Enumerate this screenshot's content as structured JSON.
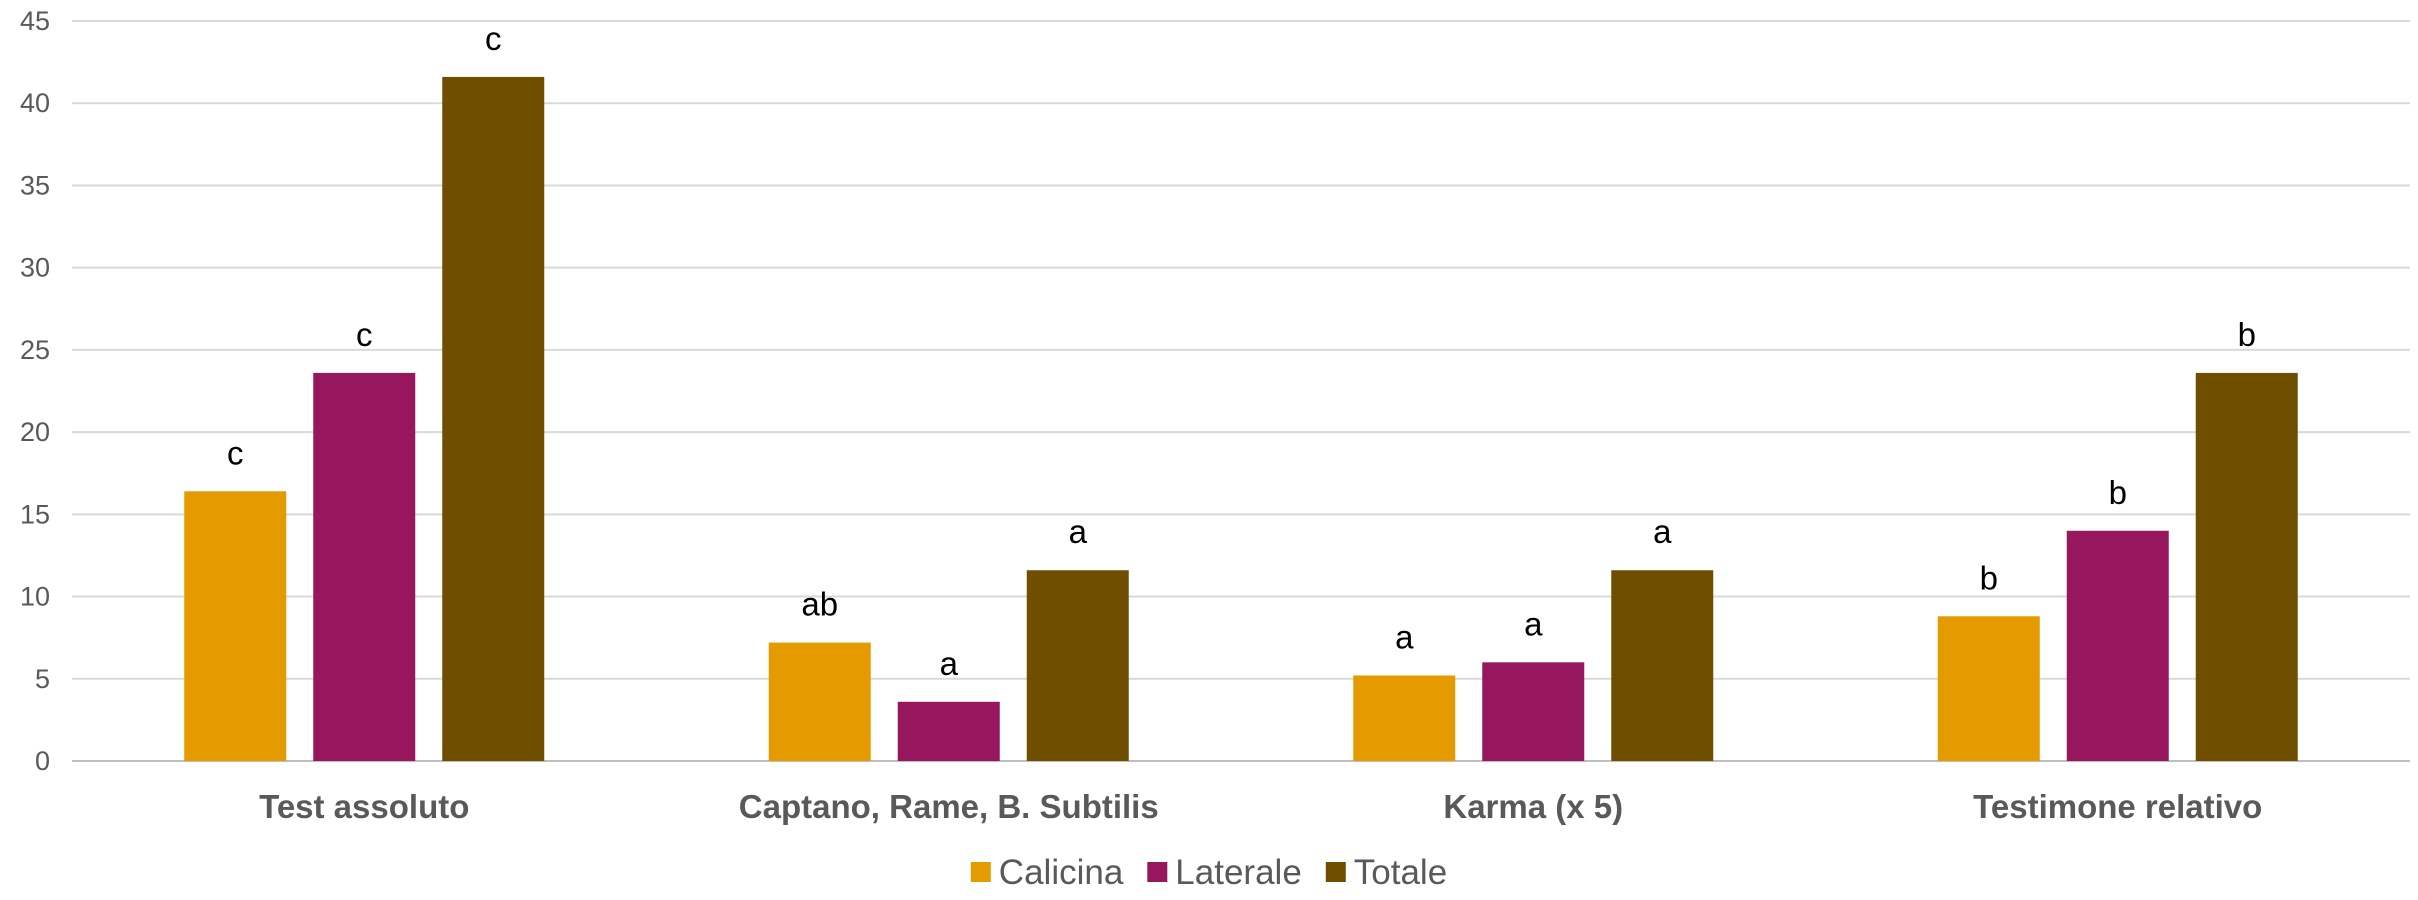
{
  "chart_data": {
    "type": "bar",
    "categories": [
      "Test assoluto",
      "Captano, Rame, B. Subtilis",
      "Karma (x 5)",
      "Testimone relativo"
    ],
    "series": [
      {
        "name": "Calicina",
        "color": "#E59A00",
        "values": [
          16.4,
          7.2,
          5.2,
          8.8
        ],
        "labels": [
          "c",
          "ab",
          "a",
          "b"
        ]
      },
      {
        "name": "Laterale",
        "color": "#96175E",
        "values": [
          23.6,
          3.6,
          6.0,
          14.0
        ],
        "labels": [
          "c",
          "a",
          "a",
          "b"
        ]
      },
      {
        "name": "Totale",
        "color": "#704E00",
        "values": [
          41.6,
          11.6,
          11.6,
          23.6
        ],
        "labels": [
          "c",
          "a",
          "a",
          "b"
        ]
      }
    ],
    "ylim": [
      0,
      45
    ],
    "yticks": [
      0,
      5,
      10,
      15,
      20,
      25,
      30,
      35,
      40,
      45
    ],
    "grid": true,
    "legend_position": "bottom",
    "title": "",
    "xlabel": "",
    "ylabel": ""
  }
}
